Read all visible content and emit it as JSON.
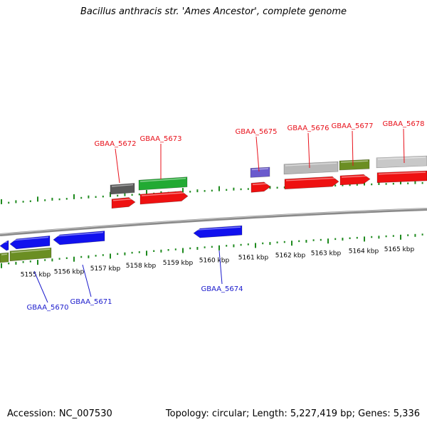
{
  "title": "Bacillus anthracis str. 'Ames Ancestor', complete genome",
  "footer": {
    "accession": "Accession: NC_007530",
    "summary": "Topology: circular; Length: 5,227,419 bp; Genes: 5,336"
  },
  "colors": {
    "forward_label": "#e8101a",
    "reverse_label": "#1a1acc",
    "backbone": "#8a8a8a",
    "ticks": "#1e8a1e"
  },
  "scale_labels": [
    "5155 kbp",
    "5156 kbp",
    "5157 kbp",
    "5158 kbp",
    "5159 kbp",
    "5160 kbp",
    "5161 kbp",
    "5162 kbp",
    "5163 kbp",
    "5164 kbp",
    "5165 kbp"
  ],
  "forward_gene_labels": [
    "GBAA_5672",
    "GBAA_5673",
    "GBAA_5675",
    "GBAA_5676",
    "GBAA_5677",
    "GBAA_5678"
  ],
  "reverse_gene_labels": [
    "GBAA_5670",
    "GBAA_5671",
    "GBAA_5674"
  ]
}
